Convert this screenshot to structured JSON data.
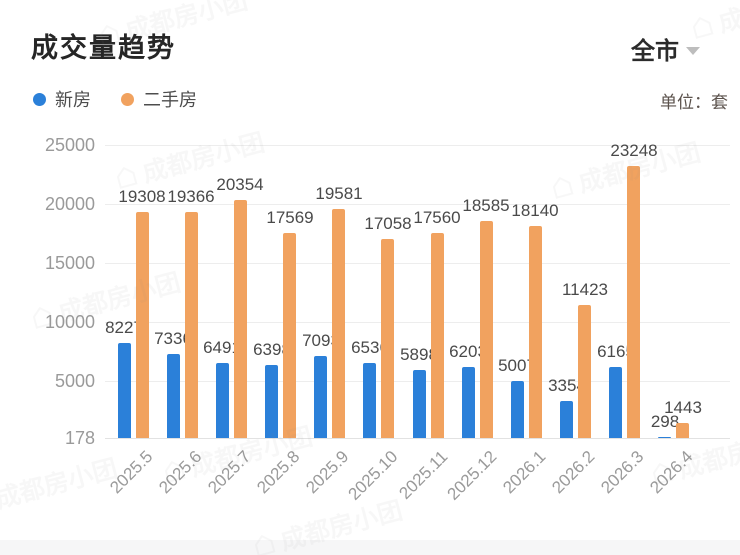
{
  "header": {
    "title": "成交量趋势",
    "region": "全市",
    "unit": "单位：套"
  },
  "legend": [
    {
      "label": "新房",
      "color": "#2b80d9"
    },
    {
      "label": "二手房",
      "color": "#f1a25f"
    }
  ],
  "chart_data": {
    "type": "bar",
    "title": "成交量趋势",
    "unit": "套",
    "categories": [
      "2025.5",
      "2025.6",
      "2025.7",
      "2025.8",
      "2025.9",
      "2025.10",
      "2025.11",
      "2025.12",
      "2026.1",
      "2026.2",
      "2026.3",
      "2026.4"
    ],
    "series": [
      {
        "name": "新房",
        "color": "#2b80d9",
        "values": [
          8227,
          7336,
          6491,
          6398,
          7093,
          6536,
          5898,
          6203,
          5007,
          3354,
          6165,
          298
        ]
      },
      {
        "name": "二手房",
        "color": "#f1a25f",
        "values": [
          19308,
          19366,
          20354,
          17569,
          19581,
          17058,
          17560,
          18585,
          18140,
          11423,
          23248,
          1443
        ]
      }
    ],
    "ylim": [
      178,
      25000
    ],
    "y_ticks": [
      178,
      5000,
      10000,
      15000,
      20000,
      25000
    ],
    "grid": true,
    "legend_position": "top-left",
    "xlabel": "",
    "ylabel": ""
  },
  "watermark": {
    "text": "成都房小团"
  }
}
